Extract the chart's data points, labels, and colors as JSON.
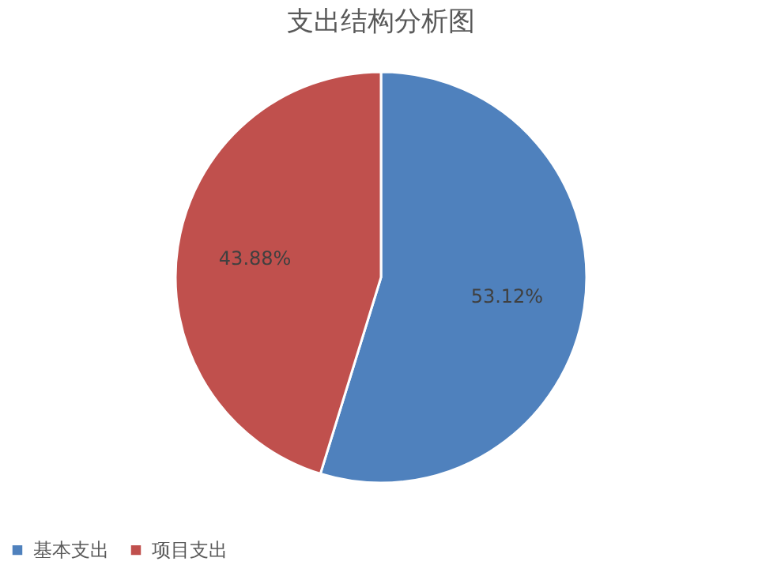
{
  "chart_data": {
    "type": "pie",
    "title": "支出结构分析图",
    "categories": [
      "基本支出",
      "项目支出"
    ],
    "values": [
      53.12,
      43.88
    ],
    "colors": [
      "#4f81bd",
      "#c0504d"
    ],
    "value_labels": [
      "53.12%",
      "43.88%"
    ],
    "legend": "bottom"
  }
}
